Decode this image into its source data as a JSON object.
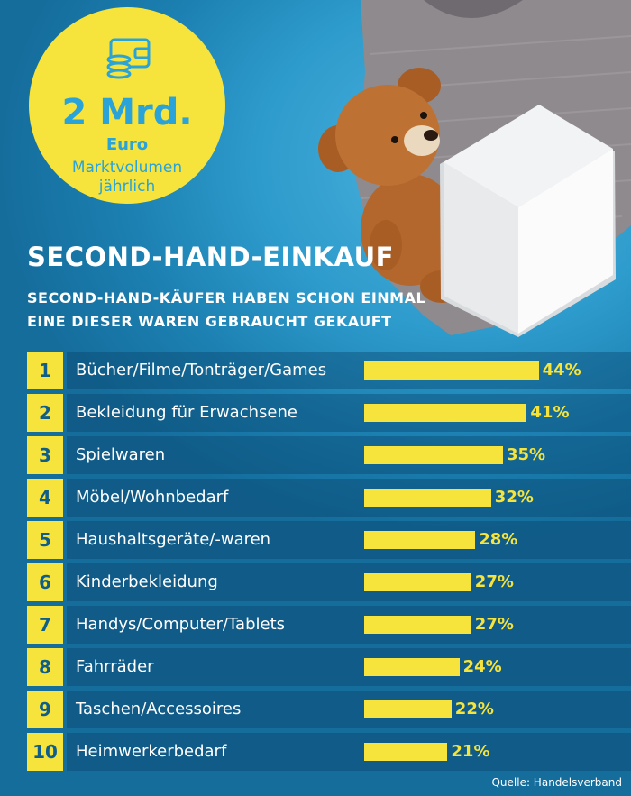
{
  "badge": {
    "value": "2 Mrd.",
    "unit": "Euro",
    "caption_line1": "Marktvolumen",
    "caption_line2": "jährlich",
    "icon": "wallet-coins-icon"
  },
  "title": "SECOND-HAND-EINKAUF",
  "subtitle_line1": "SECOND-HAND-KÄUFER HABEN SCHON EINMAL",
  "subtitle_line2": "EINE DIESER WAREN GEBRAUCHT GEKAUFT",
  "source": "Quelle: Handelsverband",
  "colors": {
    "accent": "#f6e43c",
    "background": "#2d9bcc",
    "text": "#ffffff"
  },
  "chart_data": {
    "type": "bar",
    "orientation": "horizontal",
    "ranks": [
      "1",
      "2",
      "3",
      "4",
      "5",
      "6",
      "7",
      "8",
      "9",
      "10"
    ],
    "categories": [
      "Bücher/Filme/Tonträger/Games",
      "Bekleidung für Erwachsene",
      "Spielwaren",
      "Möbel/Wohnbedarf",
      "Haushaltsgeräte/-waren",
      "Kinderbekleidung",
      "Handys/Computer/Tablets",
      "Fahrräder",
      "Taschen/Accessoires",
      "Heimwerkerbedarf"
    ],
    "values": [
      44,
      41,
      35,
      32,
      28,
      27,
      27,
      24,
      22,
      21
    ],
    "value_labels": [
      "44%",
      "41%",
      "35%",
      "32%",
      "28%",
      "27%",
      "27%",
      "24%",
      "22%",
      "21%"
    ],
    "unit": "%"
  }
}
